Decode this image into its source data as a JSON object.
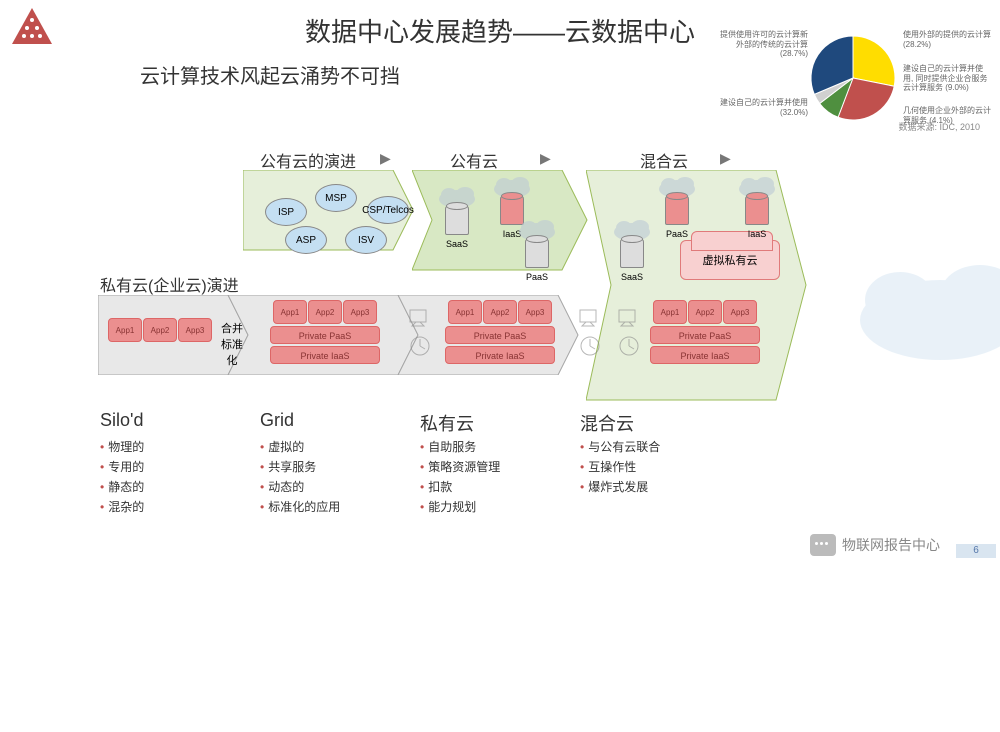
{
  "colors": {
    "red_border": "#c0504d",
    "red_fill": "#f2dcdb",
    "red_app": "#eb8f8f",
    "green_border": "#9bbb59",
    "green_fill": "#e6efda",
    "green_fill2": "#d8e8c4",
    "gray_border": "#a6a6a6",
    "gray_fill": "#e8e8e8",
    "blue_bubble": "#c4dff2",
    "pie_red": "#c0504d",
    "pie_blue": "#1f497d",
    "pie_yellow": "#ffdd00",
    "pie_green": "#4f8f3f",
    "pie_gray": "#d0d0d0"
  },
  "title": "数据中心发展趋势——云数据中心",
  "subtitle": "云计算技术风起云涌势不可挡",
  "pie": {
    "slices": [
      {
        "value": 28.7,
        "color": "#ffdd00"
      },
      {
        "value": 28.2,
        "color": "#c0504d"
      },
      {
        "value": 9.0,
        "color": "#4f8f3f"
      },
      {
        "value": 4.1,
        "color": "#d0d0d0"
      },
      {
        "value": 32.0,
        "color": "#1f497d"
      }
    ],
    "labels": {
      "tl": "提供使用许可的云计算新外部的传统的云计算 (28.7%)",
      "tr": "使用外部的提供的云计算 (28.2%)",
      "r1": "建设自己的云计算并使用, 同时提供企业合服务云计算服务 (9.0%)",
      "r2": "几何使用企业外部的云计算服务 (4.1%)",
      "bl": "建设自己的云计算并使用 (32.0%)"
    },
    "source": "数据来源: IDC, 2010"
  },
  "row1": {
    "headers": [
      "公有云的演进",
      "公有云",
      "混合云"
    ],
    "bubbles": [
      "ISP",
      "MSP",
      "CSP/Telcos",
      "ASP",
      "ISV"
    ],
    "cyls_col2": [
      "SaaS",
      "IaaS",
      "PaaS"
    ],
    "cyls_col3": [
      "SaaS",
      "PaaS",
      "IaaS"
    ],
    "hv_label": "虚拟私有云"
  },
  "row2": {
    "title": "私有云(企业云)演进",
    "apps": [
      "App1",
      "App2",
      "App3"
    ],
    "merge": "合并标准化",
    "paas": "Private PaaS",
    "iaas": "Private IaaS"
  },
  "sections": [
    {
      "hdr": "Silo'd",
      "items": [
        "物理的",
        "专用的",
        "静态的",
        "混杂的"
      ]
    },
    {
      "hdr": "Grid",
      "items": [
        "虚拟的",
        "共享服务",
        "动态的",
        "标准化的应用"
      ]
    },
    {
      "hdr": "私有云",
      "items": [
        "自助服务",
        "策略资源管理",
        "扣款",
        "能力规划"
      ]
    },
    {
      "hdr": "混合云",
      "items": [
        "与公有云联合",
        "互操作性",
        "爆炸式发展"
      ]
    }
  ],
  "footer": {
    "brand": "物联网报告中心",
    "page": "6"
  }
}
